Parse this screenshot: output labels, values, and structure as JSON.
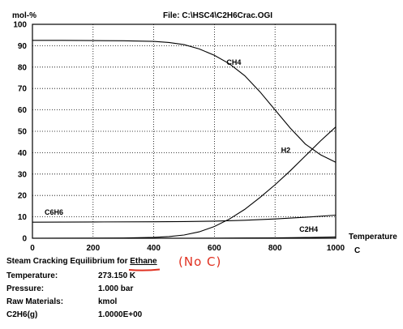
{
  "file_label": "File: C:\\HSC4\\C2H6Crac.OGI",
  "chart_data": {
    "type": "line",
    "ylabel": "mol-%",
    "xlabel": "Temperature",
    "xunit": "C",
    "xlim": [
      0,
      1000
    ],
    "ylim": [
      0,
      100
    ],
    "xticks": [
      0,
      200,
      400,
      600,
      800,
      1000
    ],
    "yticks": [
      0,
      10,
      20,
      30,
      40,
      50,
      60,
      70,
      80,
      90,
      100
    ],
    "grid": true,
    "series": [
      {
        "name": "CH4",
        "x": [
          0,
          100,
          200,
          300,
          400,
          450,
          500,
          550,
          600,
          650,
          700,
          750,
          800,
          850,
          900,
          950,
          1000
        ],
        "y": [
          92.5,
          92.5,
          92.4,
          92.3,
          92.0,
          91.5,
          90.5,
          88.5,
          85.5,
          81.5,
          76.0,
          68.5,
          60.0,
          51.5,
          44.0,
          39.0,
          35.5
        ]
      },
      {
        "name": "H2",
        "x": [
          0,
          300,
          400,
          450,
          500,
          550,
          600,
          650,
          700,
          750,
          800,
          850,
          900,
          950,
          1000
        ],
        "y": [
          0,
          0.1,
          0.4,
          0.8,
          1.5,
          3.0,
          5.5,
          9.0,
          13.5,
          19.0,
          25.0,
          31.5,
          38.5,
          45.5,
          52.0
        ]
      },
      {
        "name": "C6H6",
        "x": [
          0,
          200,
          400,
          500,
          600,
          700,
          800,
          900,
          1000
        ],
        "y": [
          7.5,
          7.6,
          7.7,
          7.8,
          8.0,
          8.4,
          9.0,
          9.8,
          10.8
        ]
      },
      {
        "name": "C2H4",
        "x": [
          0,
          500,
          600,
          700,
          800,
          900,
          950,
          1000
        ],
        "y": [
          0,
          0,
          0.05,
          0.1,
          0.2,
          0.35,
          0.45,
          0.6
        ]
      }
    ]
  },
  "title": {
    "prefix": "Steam Cracking Equilibrium for",
    "species": "Ethane",
    "handwritten_note": "(No C)"
  },
  "params": [
    {
      "label": "Temperature:",
      "value": "273.150 K"
    },
    {
      "label": "Pressure:",
      "value": "1.000 bar"
    },
    {
      "label": "Raw Materials:",
      "value": "kmol"
    },
    {
      "label": "C2H6(g)",
      "value": "1.0000E+00"
    }
  ]
}
